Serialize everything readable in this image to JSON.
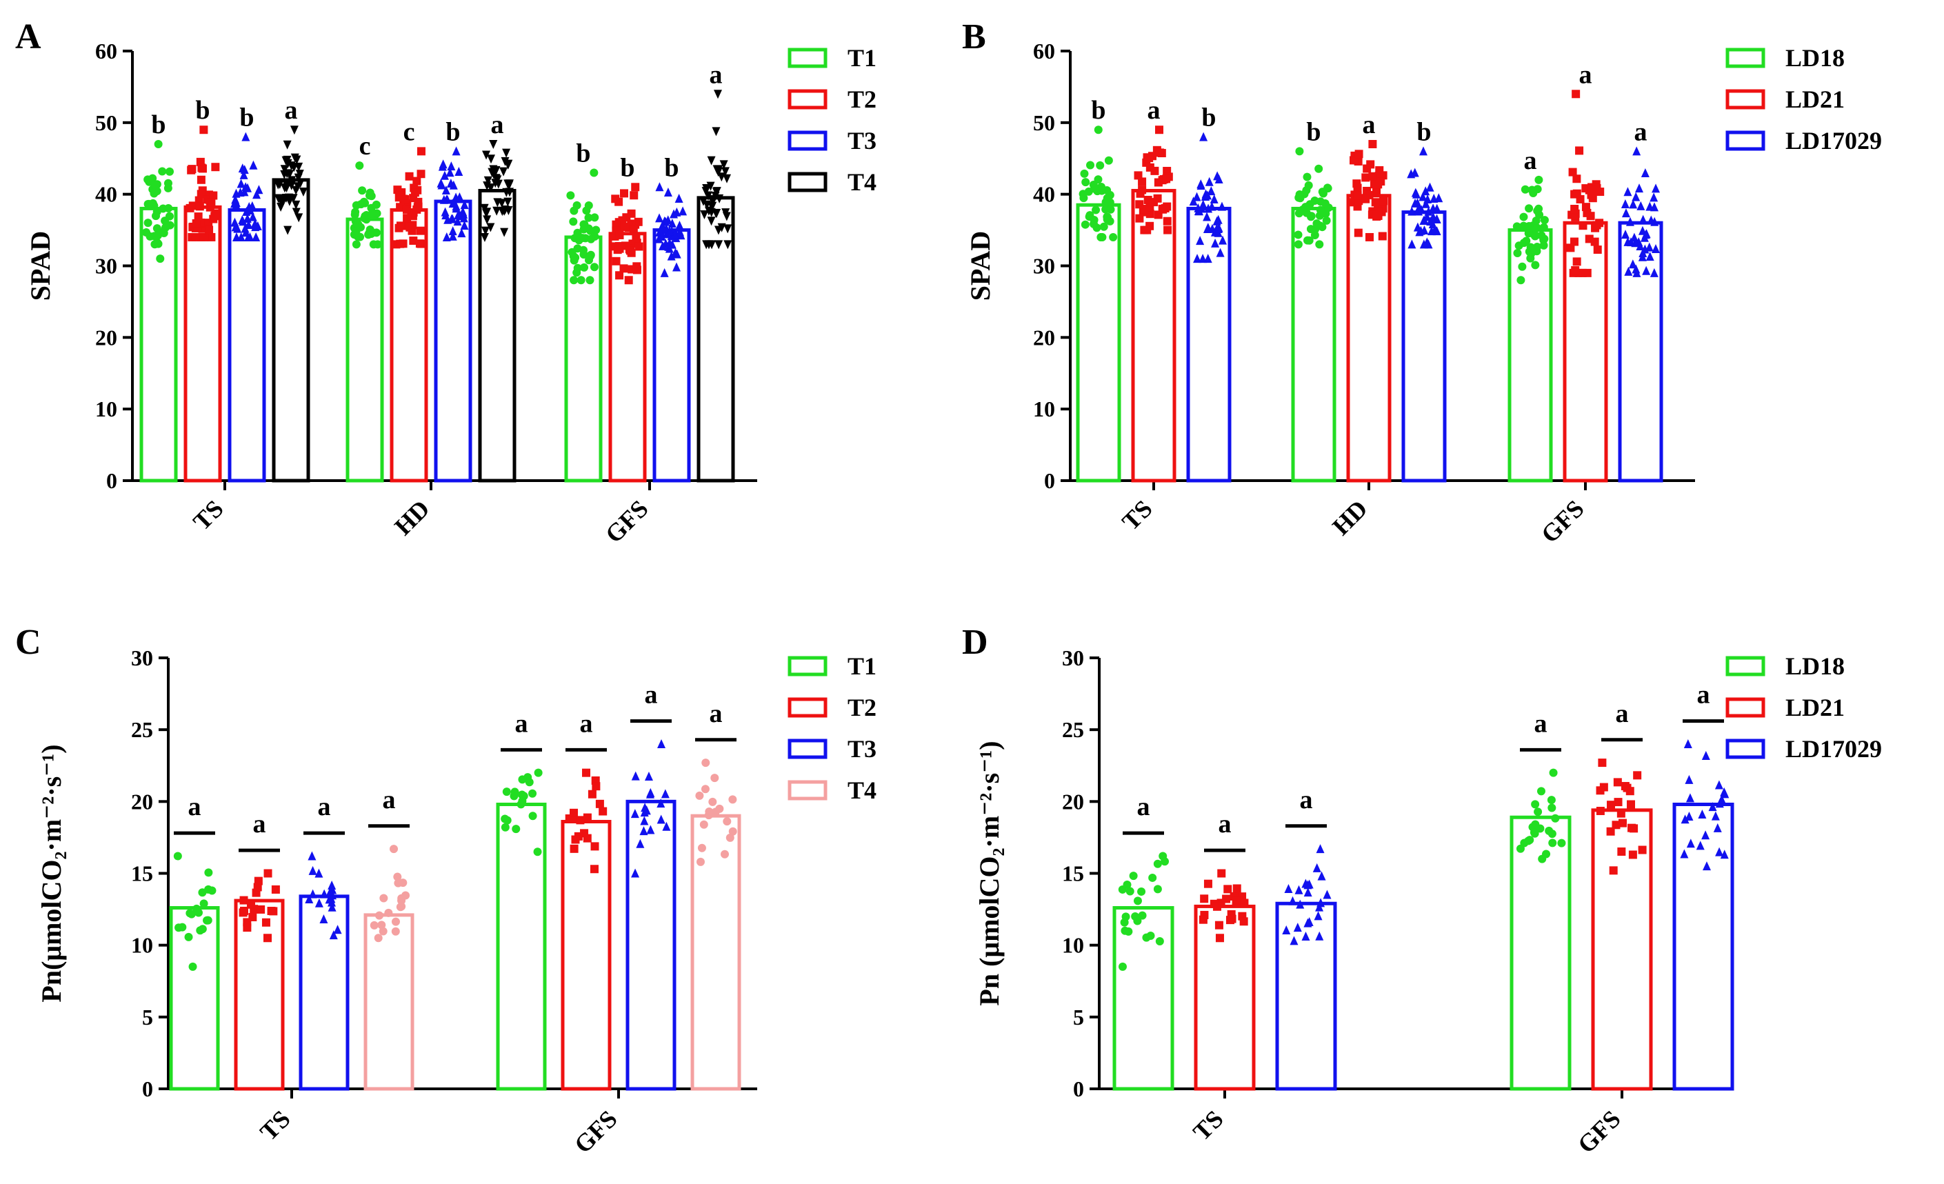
{
  "chart_data": [
    {
      "panel": "A",
      "type": "bar",
      "ylabel": "SPAD",
      "xlabel": "",
      "ylim": [
        0,
        60
      ],
      "yticks": [
        "0",
        "10",
        "20",
        "30",
        "40",
        "50",
        "60"
      ],
      "categories": [
        "TS",
        "HD",
        "GFS"
      ],
      "marker": "mixed",
      "legend_position": "right",
      "series": [
        {
          "name": "T1",
          "color": "#22dd22",
          "marker": "circle",
          "values": [
            38.0,
            36.5,
            34.0
          ],
          "letters": [
            "b",
            "c",
            "b"
          ],
          "range": [
            [
              31,
              47
            ],
            [
              33,
              44
            ],
            [
              28,
              43
            ]
          ]
        },
        {
          "name": "T2",
          "color": "#ee1111",
          "marker": "square",
          "values": [
            38.2,
            37.8,
            34.5
          ],
          "letters": [
            "b",
            "c",
            "b"
          ],
          "range": [
            [
              34,
              49
            ],
            [
              33,
              46
            ],
            [
              28,
              41
            ]
          ]
        },
        {
          "name": "T3",
          "color": "#1111ee",
          "marker": "triangle",
          "values": [
            37.8,
            39.0,
            35.0
          ],
          "letters": [
            "b",
            "b",
            "b"
          ],
          "range": [
            [
              34,
              48
            ],
            [
              34,
              46
            ],
            [
              29,
              41
            ]
          ]
        },
        {
          "name": "T4",
          "color": "#000000",
          "marker": "triangle-down",
          "values": [
            42.0,
            40.5,
            39.5
          ],
          "letters": [
            "a",
            "a",
            "a"
          ],
          "range": [
            [
              35,
              49
            ],
            [
              34,
              47
            ],
            [
              33,
              54
            ]
          ]
        }
      ]
    },
    {
      "panel": "B",
      "type": "bar",
      "ylabel": "SPAD",
      "xlabel": "",
      "ylim": [
        0,
        60
      ],
      "yticks": [
        "0",
        "10",
        "20",
        "30",
        "40",
        "50",
        "60"
      ],
      "categories": [
        "TS",
        "HD",
        "GFS"
      ],
      "legend_position": "right",
      "series": [
        {
          "name": "LD18",
          "color": "#22dd22",
          "marker": "circle",
          "values": [
            38.5,
            38.0,
            35.0
          ],
          "letters": [
            "b",
            "b",
            "a"
          ],
          "range": [
            [
              34,
              49
            ],
            [
              33,
              46
            ],
            [
              28,
              42
            ]
          ]
        },
        {
          "name": "LD21",
          "color": "#ee1111",
          "marker": "square",
          "values": [
            40.5,
            39.8,
            36.0
          ],
          "letters": [
            "a",
            "a",
            "a"
          ],
          "range": [
            [
              35,
              49
            ],
            [
              34,
              47
            ],
            [
              29,
              54
            ]
          ]
        },
        {
          "name": "LD17029",
          "color": "#1111ee",
          "marker": "triangle",
          "values": [
            38.0,
            37.5,
            36.0
          ],
          "letters": [
            "b",
            "b",
            "a"
          ],
          "range": [
            [
              31,
              48
            ],
            [
              33,
              46
            ],
            [
              29,
              46
            ]
          ]
        }
      ]
    },
    {
      "panel": "C",
      "type": "bar",
      "ylabel": "Pn(μmolCO₂·m⁻²·s⁻¹)",
      "xlabel": "",
      "ylim": [
        0,
        30
      ],
      "yticks": [
        "0",
        "5",
        "10",
        "15",
        "20",
        "25",
        "30"
      ],
      "categories": [
        "TS",
        "GFS"
      ],
      "legend_position": "right",
      "series": [
        {
          "name": "T1",
          "color": "#22dd22",
          "marker": "circle",
          "values": [
            12.6,
            19.8
          ],
          "letters": [
            "a",
            "a"
          ],
          "range": [
            [
              8.5,
              16.2
            ],
            [
              16.5,
              22.0
            ]
          ]
        },
        {
          "name": "T2",
          "color": "#ee1111",
          "marker": "square",
          "values": [
            13.1,
            18.6
          ],
          "letters": [
            "a",
            "a"
          ],
          "range": [
            [
              10.5,
              15.0
            ],
            [
              15.3,
              22.0
            ]
          ]
        },
        {
          "name": "T3",
          "color": "#1111ee",
          "marker": "triangle",
          "values": [
            13.4,
            20.0
          ],
          "letters": [
            "a",
            "a"
          ],
          "range": [
            [
              10.7,
              16.2
            ],
            [
              15.0,
              24.0
            ]
          ]
        },
        {
          "name": "T4",
          "color": "#f4a0a0",
          "marker": "circle",
          "values": [
            12.1,
            19.0
          ],
          "letters": [
            "a",
            "a"
          ],
          "range": [
            [
              10.5,
              16.7
            ],
            [
              15.8,
              22.7
            ]
          ]
        }
      ]
    },
    {
      "panel": "D",
      "type": "bar",
      "ylabel": "Pn (μmolCO₂·m⁻²·s⁻¹)",
      "xlabel": "",
      "ylim": [
        0,
        30
      ],
      "yticks": [
        "0",
        "5",
        "10",
        "15",
        "20",
        "25",
        "30"
      ],
      "categories": [
        "TS",
        "GFS"
      ],
      "legend_position": "right",
      "series": [
        {
          "name": "LD18",
          "color": "#22dd22",
          "marker": "circle",
          "values": [
            12.6,
            18.9
          ],
          "letters": [
            "a",
            "a"
          ],
          "range": [
            [
              8.5,
              16.2
            ],
            [
              16.0,
              22.0
            ]
          ]
        },
        {
          "name": "LD21",
          "color": "#ee1111",
          "marker": "square",
          "values": [
            12.7,
            19.4
          ],
          "letters": [
            "a",
            "a"
          ],
          "range": [
            [
              10.5,
              15.0
            ],
            [
              15.2,
              22.7
            ]
          ]
        },
        {
          "name": "LD17029",
          "color": "#1111ee",
          "marker": "triangle",
          "values": [
            12.9,
            19.8
          ],
          "letters": [
            "a",
            "a"
          ],
          "range": [
            [
              10.3,
              16.7
            ],
            [
              15.5,
              24.0
            ]
          ]
        }
      ]
    }
  ]
}
